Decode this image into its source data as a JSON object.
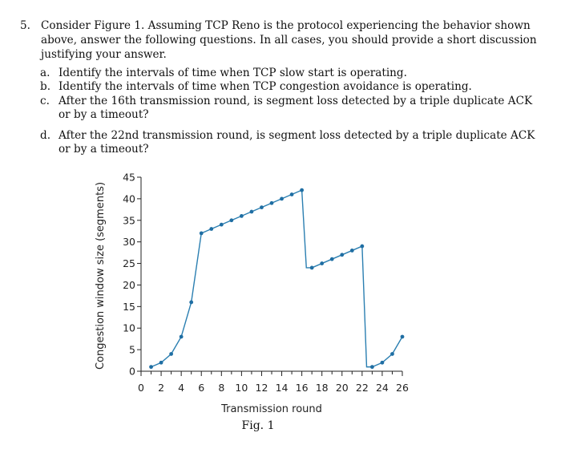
{
  "question": {
    "number": "5.",
    "text": "Consider Figure 1. Assuming TCP Reno is the protocol experiencing the behavior shown above, answer the following questions. In all cases, you should provide a short discussion justifying your answer."
  },
  "parts": [
    {
      "label": "a.",
      "text": "Identify the intervals of time when TCP slow start is operating."
    },
    {
      "label": "b.",
      "text": "Identify the intervals of time when TCP congestion avoidance is operating."
    },
    {
      "label": "c.",
      "text": "After the 16th transmission round, is segment loss detected by a triple duplicate ACK or by a timeout?"
    },
    {
      "label": "d.",
      "text": "After the 22nd transmission round, is segment loss detected by a triple duplicate ACK or by a timeout?"
    }
  ],
  "figure": {
    "caption": "Fig. 1"
  },
  "chart_data": {
    "type": "line",
    "title": "",
    "xlabel": "Transmission round",
    "ylabel": "Congestion window size (segments)",
    "xlim": [
      0,
      26
    ],
    "ylim": [
      0,
      45
    ],
    "xticks": [
      0,
      2,
      4,
      6,
      8,
      10,
      12,
      14,
      16,
      18,
      20,
      22,
      24,
      26
    ],
    "yticks": [
      0,
      5,
      10,
      15,
      20,
      25,
      30,
      35,
      40,
      45
    ],
    "segments": [
      {
        "name": "rounds 1-16",
        "points": [
          [
            1,
            1
          ],
          [
            2,
            2
          ],
          [
            3,
            4
          ],
          [
            4,
            8
          ],
          [
            5,
            16
          ],
          [
            6,
            32
          ],
          [
            7,
            33
          ],
          [
            8,
            34
          ],
          [
            9,
            35
          ],
          [
            10,
            36
          ],
          [
            11,
            37
          ],
          [
            12,
            38
          ],
          [
            13,
            39
          ],
          [
            14,
            40
          ],
          [
            15,
            41
          ],
          [
            16,
            42
          ]
        ]
      },
      {
        "name": "rounds 17-22",
        "points": [
          [
            17,
            24
          ],
          [
            18,
            25
          ],
          [
            19,
            26
          ],
          [
            20,
            27
          ],
          [
            21,
            28
          ],
          [
            22,
            29
          ]
        ]
      },
      {
        "name": "rounds 23-26",
        "points": [
          [
            23,
            1
          ],
          [
            24,
            2
          ],
          [
            25,
            4
          ],
          [
            26,
            8
          ]
        ]
      }
    ],
    "drops": [
      [
        16,
        42,
        17,
        24
      ],
      [
        22,
        29,
        23,
        1
      ]
    ],
    "line_color": "#2b7fb1",
    "marker_color": "#1f6ea3"
  }
}
